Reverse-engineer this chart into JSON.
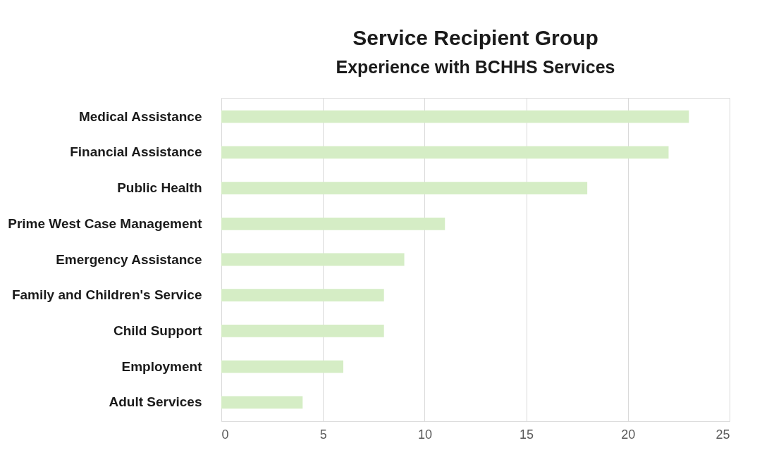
{
  "chart_data": {
    "type": "bar",
    "orientation": "horizontal",
    "title": "Service Recipient Group",
    "subtitle": "Experience with BCHHS Services",
    "categories": [
      "Medical Assistance",
      "Financial Assistance",
      "Public Health",
      "Prime West Case Management",
      "Emergency Assistance",
      "Family and Children's Service",
      "Child Support",
      "Employment",
      "Adult Services"
    ],
    "values": [
      23,
      22,
      18,
      11,
      9,
      8,
      8,
      6,
      4
    ],
    "color": "#d5edc5",
    "xlim": [
      0,
      25
    ],
    "xticks": [
      0,
      5,
      10,
      15,
      20,
      25
    ],
    "grid": "x"
  }
}
